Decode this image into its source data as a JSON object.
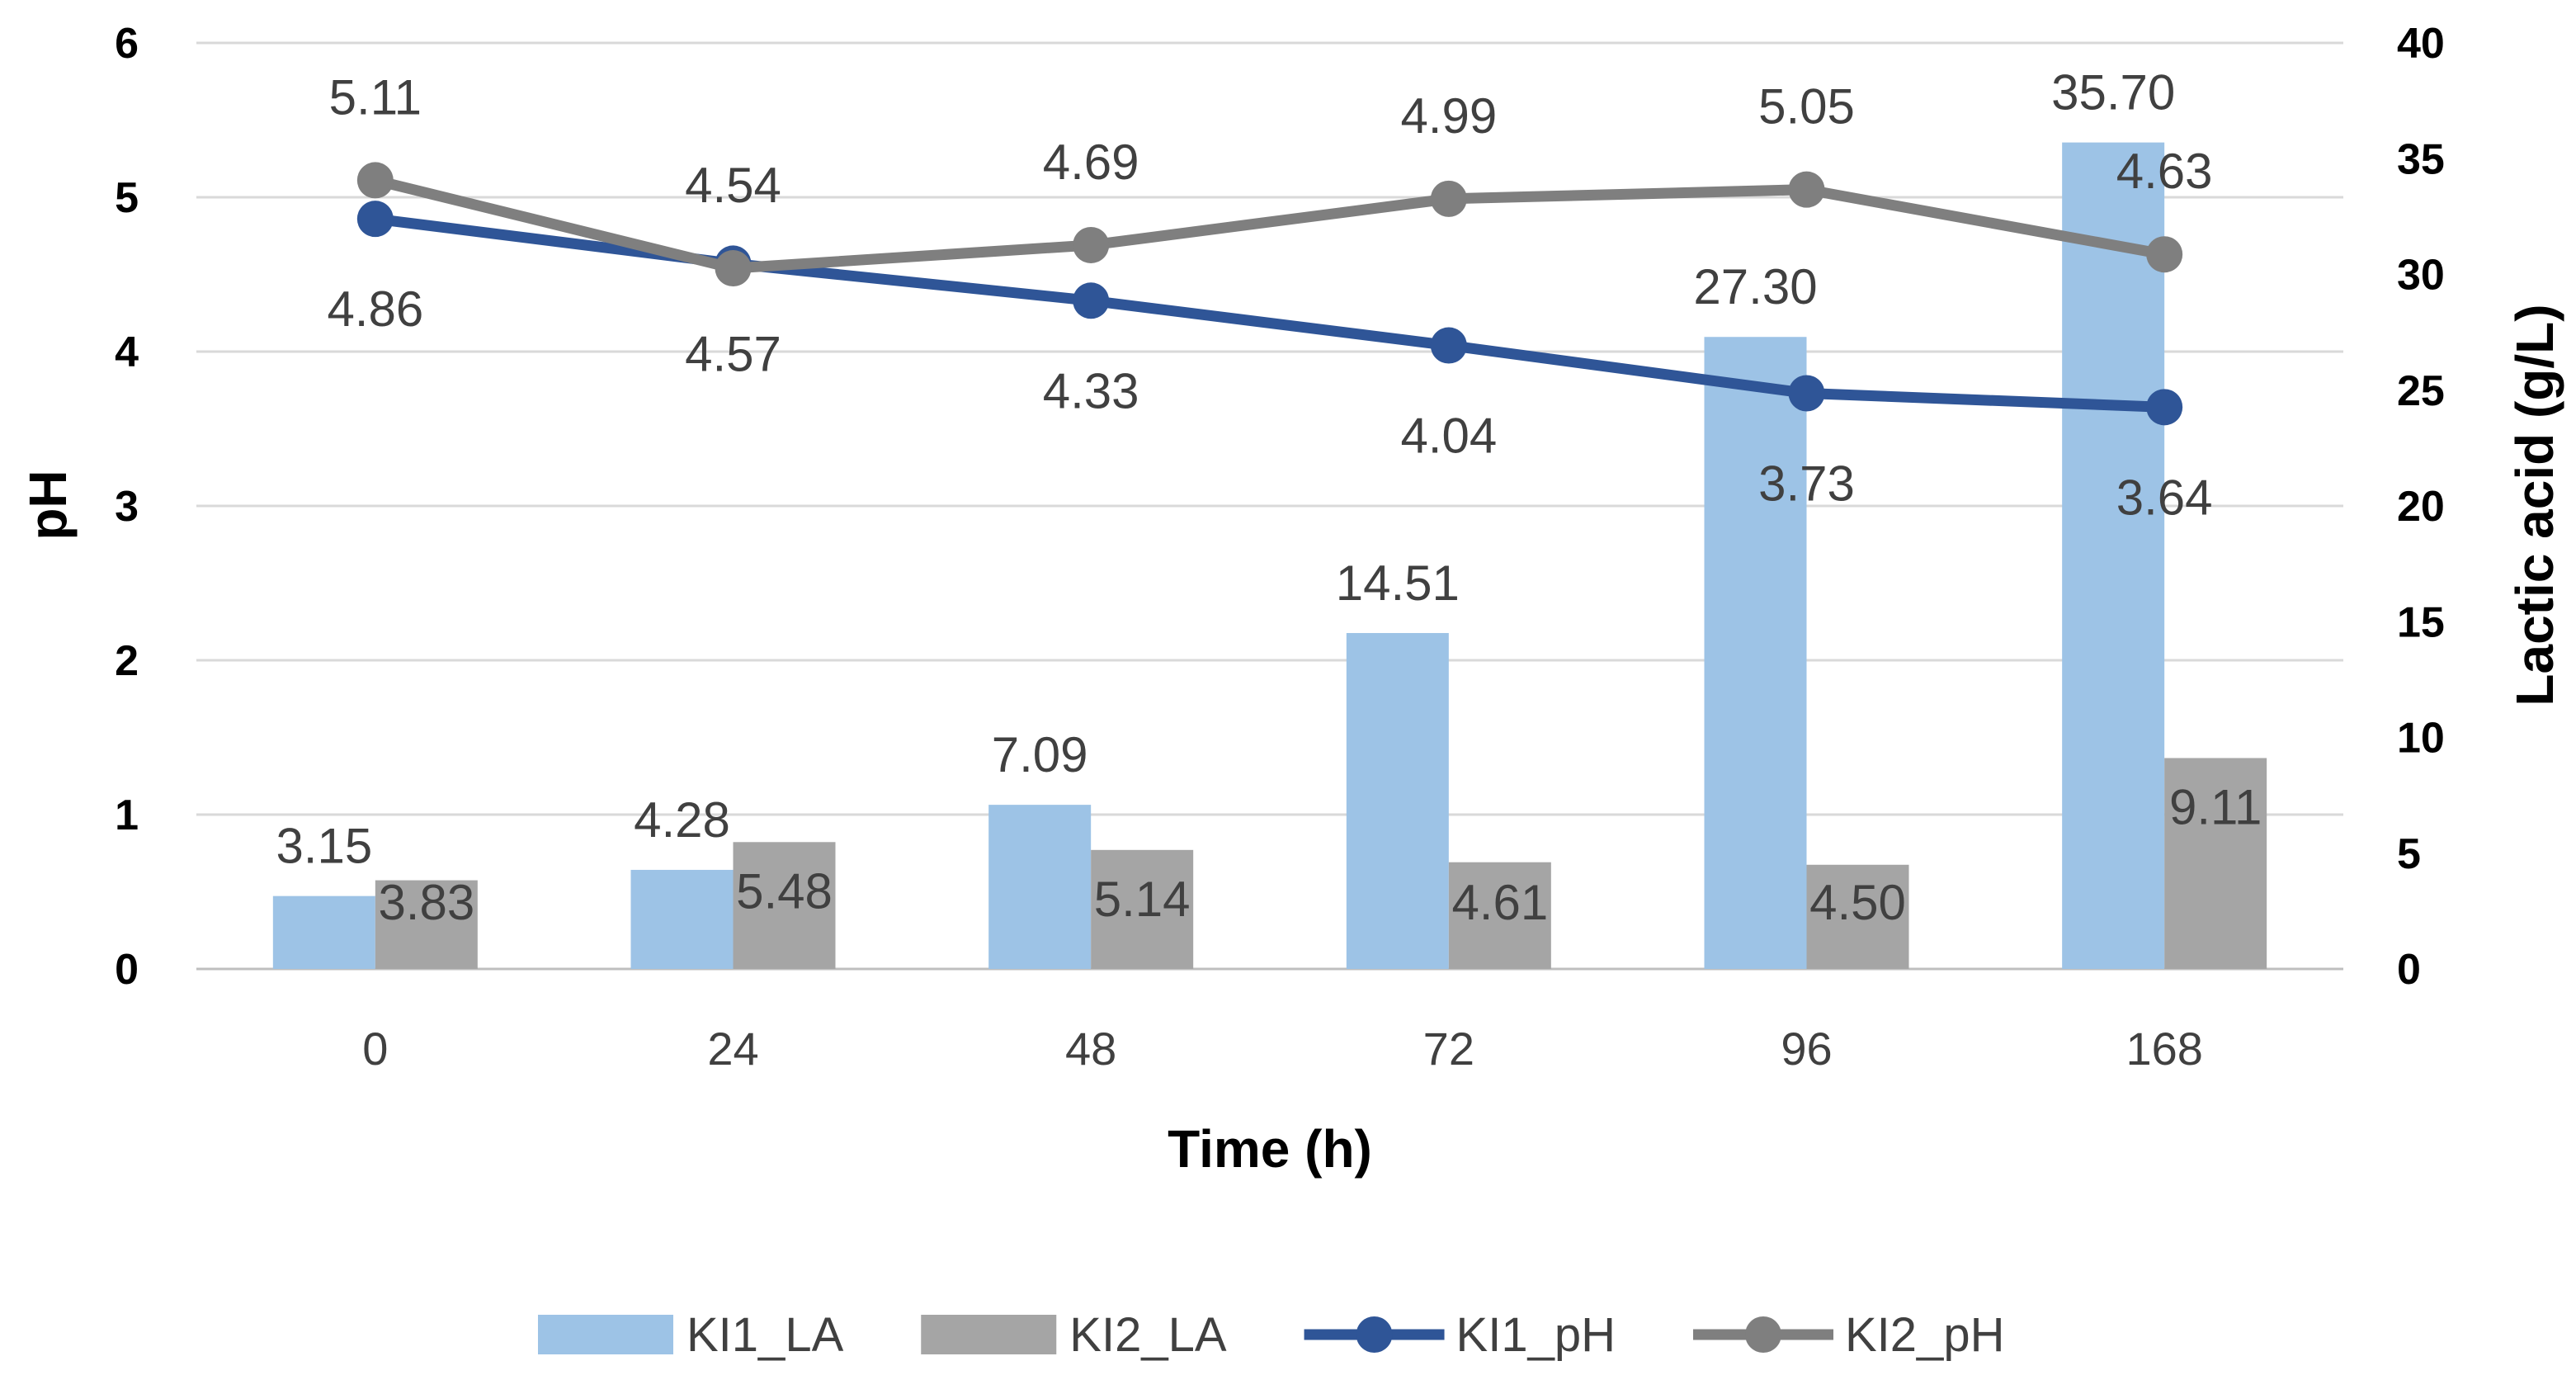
{
  "chart_data": {
    "type": "bar-line-combo",
    "xlabel": "Time (h)",
    "ylabel_left": "pH",
    "ylabel_right": "Lactic acid (g/L)",
    "categories": [
      "0",
      "24",
      "48",
      "72",
      "96",
      "168"
    ],
    "y_left": {
      "min": 0,
      "max": 6,
      "step": 1,
      "ticks": [
        "0",
        "1",
        "2",
        "3",
        "4",
        "5",
        "6"
      ]
    },
    "y_right": {
      "min": 0,
      "max": 40,
      "step": 5,
      "ticks": [
        "0",
        "5",
        "10",
        "15",
        "20",
        "25",
        "30",
        "35",
        "40"
      ]
    },
    "gridlines": true,
    "legend_position": "bottom",
    "series": [
      {
        "name": "KI1_LA",
        "kind": "bar",
        "axis": "right",
        "color": "#9DC3E6",
        "values": [
          3.15,
          4.28,
          7.09,
          14.51,
          27.3,
          35.7
        ],
        "labels": [
          "3.15",
          "4.28",
          "7.09",
          "14.51",
          "27.30",
          "35.70"
        ]
      },
      {
        "name": "KI2_LA",
        "kind": "bar",
        "axis": "right",
        "color": "#A5A5A5",
        "values": [
          3.83,
          5.48,
          5.14,
          4.61,
          4.5,
          9.11
        ],
        "labels": [
          "3.83",
          "5.48",
          "5.14",
          "4.61",
          "4.50",
          "9.11"
        ]
      },
      {
        "name": "KI1_pH",
        "kind": "line",
        "axis": "left",
        "color": "#2F5597",
        "values": [
          4.86,
          4.57,
          4.33,
          4.04,
          3.73,
          3.64
        ],
        "labels": [
          "4.86",
          "4.57",
          "4.33",
          "4.04",
          "3.73",
          "3.64"
        ]
      },
      {
        "name": "KI2_pH",
        "kind": "line",
        "axis": "left",
        "color": "#7F7F7F",
        "values": [
          5.11,
          4.54,
          4.69,
          4.99,
          5.05,
          4.63
        ],
        "labels": [
          "5.11",
          "4.54",
          "4.69",
          "4.99",
          "5.05",
          "4.63"
        ]
      }
    ]
  }
}
